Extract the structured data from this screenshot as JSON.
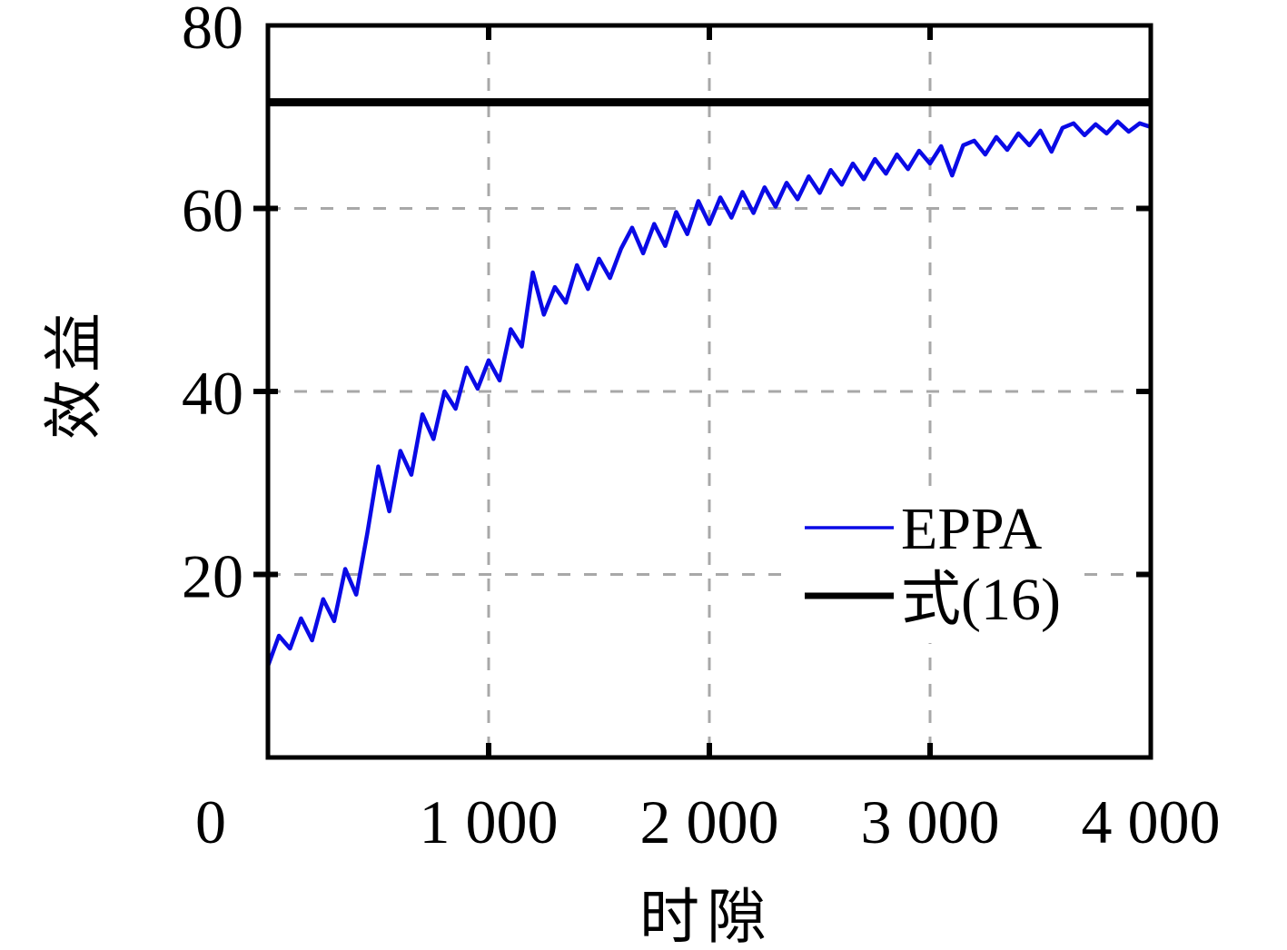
{
  "chart_data": {
    "type": "line",
    "title": "",
    "xlabel": "时隙",
    "ylabel": "效益",
    "xlim": [
      0,
      4000
    ],
    "ylim": [
      0,
      80
    ],
    "grid": "dashed",
    "grid_color": "#a8a8a8",
    "axis_color": "#000000",
    "legend_position": "right-center",
    "x_ticks": [
      {
        "value": 0,
        "label": "0"
      },
      {
        "value": 1000,
        "label": "1 000"
      },
      {
        "value": 2000,
        "label": "2 000"
      },
      {
        "value": 3000,
        "label": "3 000"
      },
      {
        "value": 4000,
        "label": "4 000"
      }
    ],
    "y_ticks": [
      {
        "value": 20,
        "label": "20"
      },
      {
        "value": 40,
        "label": "40"
      },
      {
        "value": 60,
        "label": "60"
      },
      {
        "value": 80,
        "label": "80"
      }
    ],
    "x_gridlines": [
      1000,
      2000,
      3000
    ],
    "y_gridlines": [
      20,
      40,
      60
    ],
    "series": [
      {
        "name": "EPPA",
        "type": "line",
        "color": "#0a0ae6",
        "stroke_width": 4.5,
        "points": [
          [
            0,
            10.0
          ],
          [
            50,
            13.3
          ],
          [
            100,
            11.9
          ],
          [
            150,
            15.2
          ],
          [
            200,
            12.8
          ],
          [
            250,
            17.3
          ],
          [
            300,
            14.9
          ],
          [
            350,
            20.6
          ],
          [
            400,
            17.8
          ],
          [
            450,
            24.5
          ],
          [
            500,
            31.8
          ],
          [
            550,
            26.9
          ],
          [
            600,
            33.5
          ],
          [
            650,
            30.9
          ],
          [
            700,
            37.5
          ],
          [
            750,
            34.8
          ],
          [
            800,
            40.0
          ],
          [
            850,
            38.1
          ],
          [
            900,
            42.6
          ],
          [
            950,
            40.3
          ],
          [
            1000,
            43.4
          ],
          [
            1050,
            41.2
          ],
          [
            1100,
            46.8
          ],
          [
            1150,
            44.9
          ],
          [
            1200,
            53.0
          ],
          [
            1250,
            48.4
          ],
          [
            1300,
            51.4
          ],
          [
            1350,
            49.7
          ],
          [
            1400,
            53.8
          ],
          [
            1450,
            51.2
          ],
          [
            1500,
            54.5
          ],
          [
            1550,
            52.4
          ],
          [
            1600,
            55.6
          ],
          [
            1650,
            57.9
          ],
          [
            1700,
            55.1
          ],
          [
            1750,
            58.3
          ],
          [
            1800,
            55.9
          ],
          [
            1850,
            59.6
          ],
          [
            1900,
            57.2
          ],
          [
            1950,
            60.8
          ],
          [
            2000,
            58.3
          ],
          [
            2050,
            61.2
          ],
          [
            2100,
            59.0
          ],
          [
            2150,
            61.8
          ],
          [
            2200,
            59.5
          ],
          [
            2250,
            62.3
          ],
          [
            2300,
            60.2
          ],
          [
            2350,
            62.8
          ],
          [
            2400,
            61.0
          ],
          [
            2450,
            63.5
          ],
          [
            2500,
            61.7
          ],
          [
            2550,
            64.2
          ],
          [
            2600,
            62.6
          ],
          [
            2650,
            64.9
          ],
          [
            2700,
            63.2
          ],
          [
            2750,
            65.4
          ],
          [
            2800,
            63.8
          ],
          [
            2850,
            65.9
          ],
          [
            2900,
            64.3
          ],
          [
            2950,
            66.3
          ],
          [
            3000,
            64.9
          ],
          [
            3050,
            66.8
          ],
          [
            3100,
            63.6
          ],
          [
            3150,
            66.9
          ],
          [
            3200,
            67.4
          ],
          [
            3250,
            65.9
          ],
          [
            3300,
            67.8
          ],
          [
            3350,
            66.4
          ],
          [
            3400,
            68.2
          ],
          [
            3450,
            66.9
          ],
          [
            3500,
            68.5
          ],
          [
            3550,
            66.2
          ],
          [
            3600,
            68.8
          ],
          [
            3650,
            69.3
          ],
          [
            3700,
            68.0
          ],
          [
            3750,
            69.2
          ],
          [
            3800,
            68.2
          ],
          [
            3850,
            69.5
          ],
          [
            3900,
            68.4
          ],
          [
            3950,
            69.3
          ],
          [
            4000,
            68.9
          ]
        ]
      },
      {
        "name": "式(16)",
        "type": "hline",
        "color": "#000000",
        "stroke_width": 9,
        "value": 71.6
      }
    ]
  },
  "legend": {
    "items": [
      {
        "label": "EPPA",
        "color": "#0a0ae6",
        "swatch_width": 3.5
      },
      {
        "label": "式(16)",
        "color": "#000000",
        "swatch_width": 7
      }
    ]
  }
}
